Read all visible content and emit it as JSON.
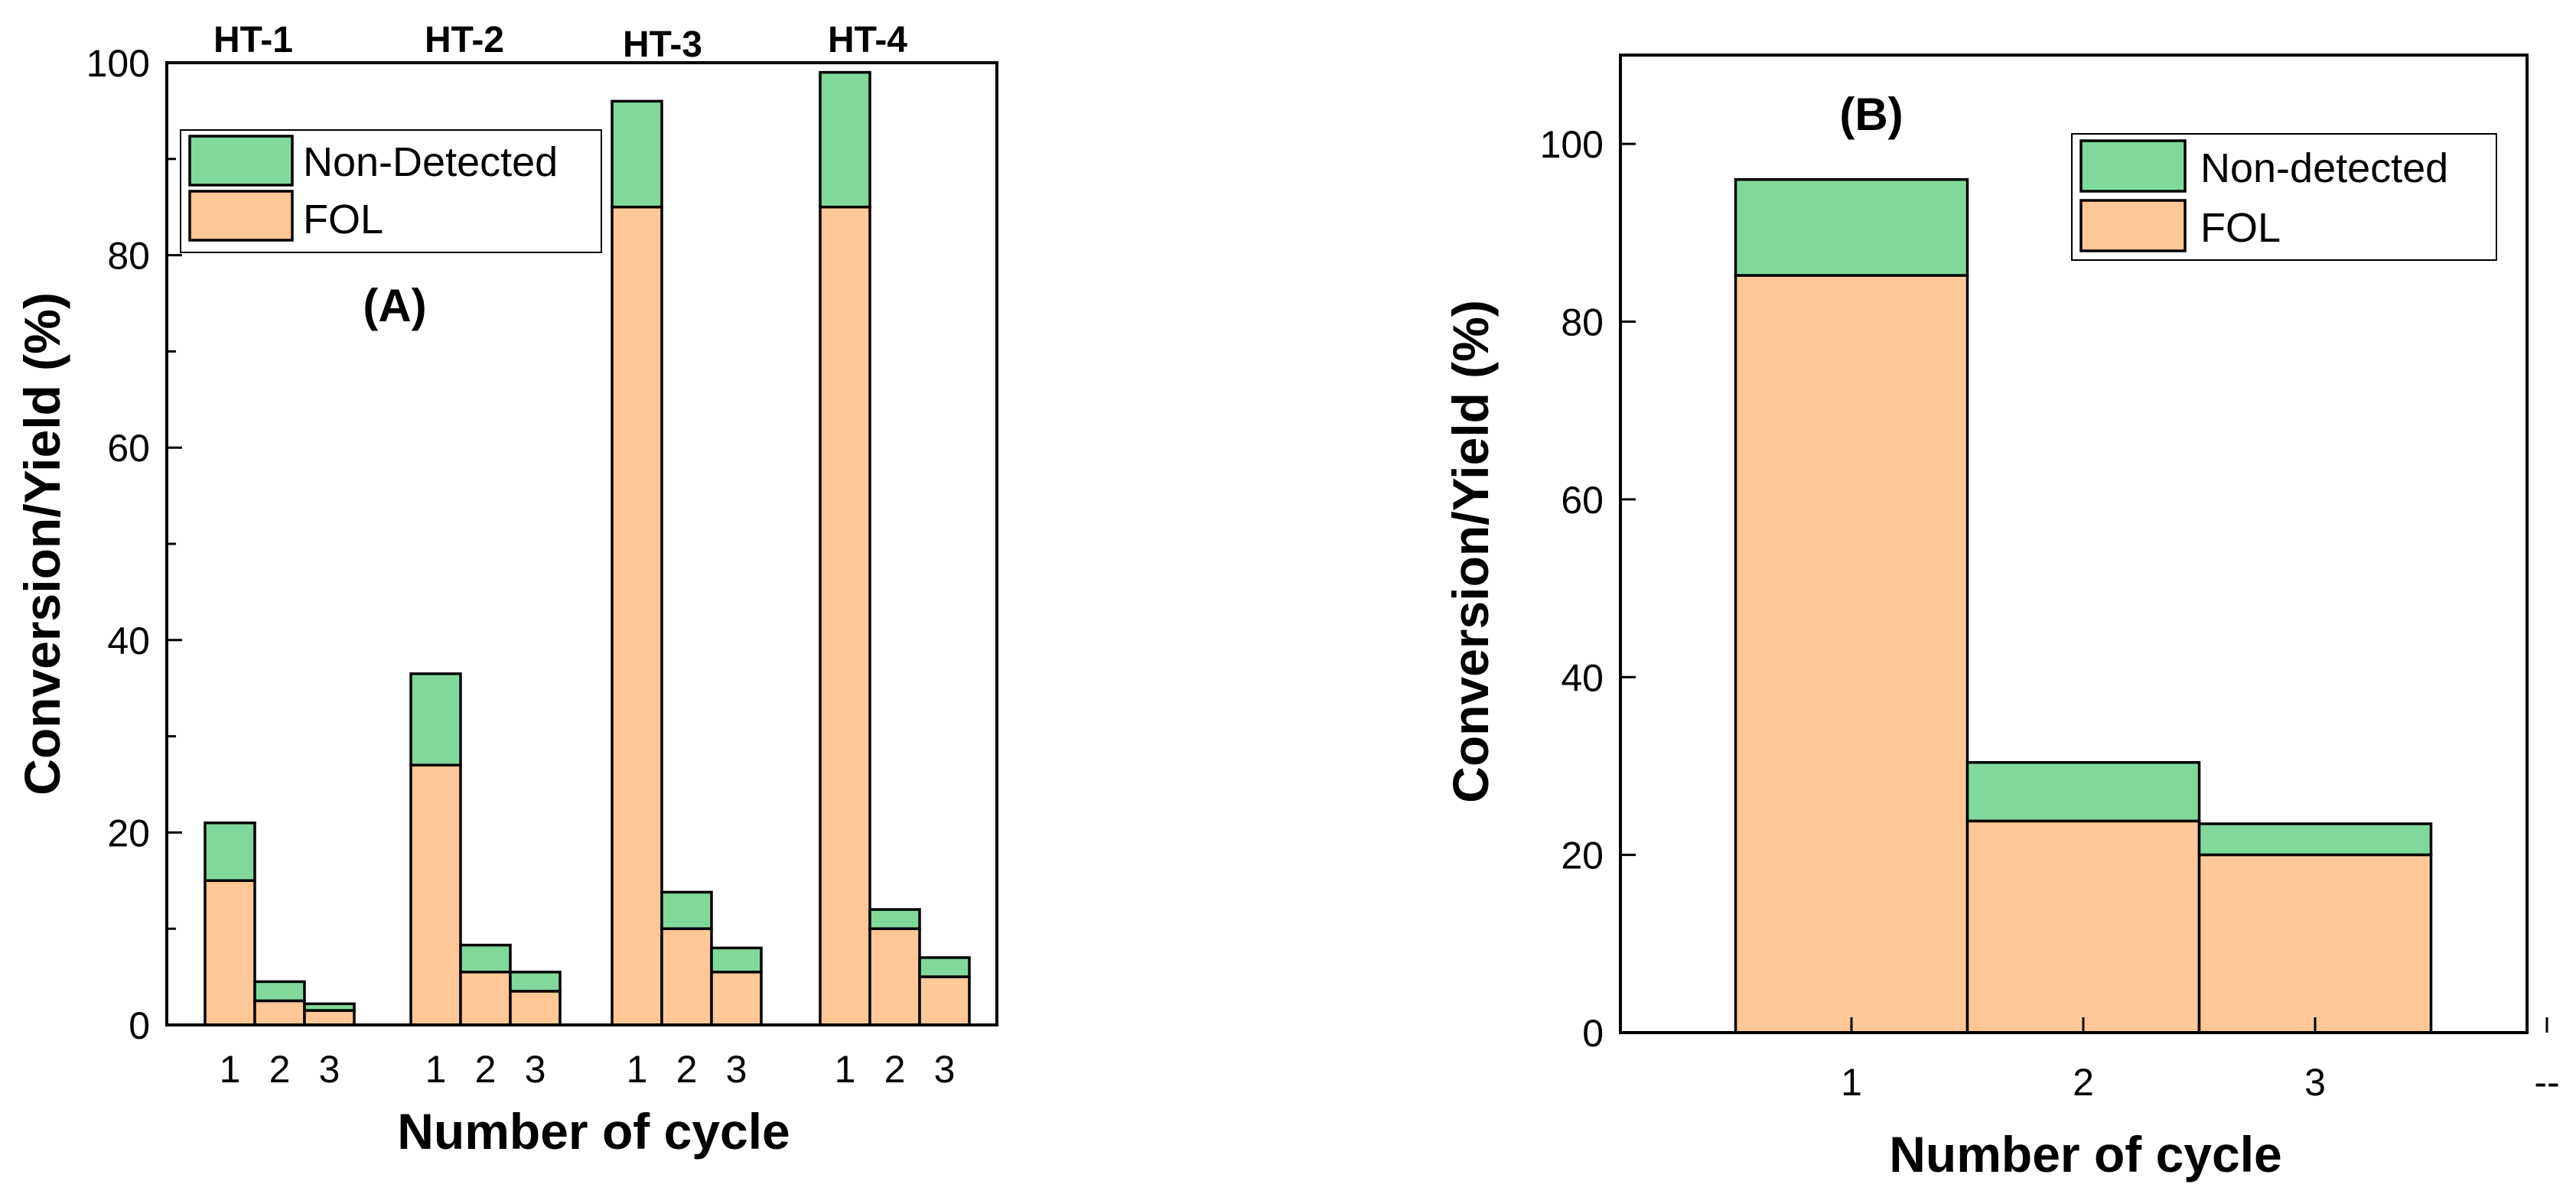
{
  "colors": {
    "fol": "#ffc896",
    "non_detected": "#80d99b",
    "axis": "#000000"
  },
  "chart_data": [
    {
      "panel": "A",
      "type": "bar",
      "stacked": true,
      "tag": "(A)",
      "xlabel": "Number of cycle",
      "ylabel": "Conversion/Yield (%)",
      "ylim": [
        0,
        100
      ],
      "yticks": [
        0,
        20,
        40,
        60,
        80,
        100
      ],
      "legend": {
        "position": "top-left",
        "entries": [
          "Non-Detected",
          "FOL"
        ]
      },
      "groups": [
        {
          "name": "HT-1",
          "cycles": [
            "1",
            "2",
            "3"
          ],
          "fol": [
            15,
            2.5,
            1.5
          ],
          "total": [
            21,
            4.5,
            2.2
          ]
        },
        {
          "name": "HT-2",
          "cycles": [
            "1",
            "2",
            "3"
          ],
          "fol": [
            27,
            5.5,
            3.5
          ],
          "total": [
            36.5,
            8.3,
            5.5
          ]
        },
        {
          "name": "HT-3",
          "cycles": [
            "1",
            "2",
            "3"
          ],
          "fol": [
            85,
            10,
            5.5
          ],
          "total": [
            96,
            13.8,
            8
          ]
        },
        {
          "name": "HT-4",
          "cycles": [
            "1",
            "2",
            "3"
          ],
          "fol": [
            85,
            10,
            5
          ],
          "total": [
            99,
            12,
            7
          ]
        }
      ]
    },
    {
      "panel": "B",
      "type": "bar",
      "stacked": true,
      "tag": "(B)",
      "xlabel": "Number of cycle",
      "ylabel": "Conversion/Yield (%)",
      "ylim": [
        0,
        110
      ],
      "yticks": [
        0,
        20,
        40,
        60,
        80,
        100
      ],
      "xticks": [
        "1",
        "2",
        "3",
        "--"
      ],
      "legend": {
        "position": "top-right",
        "entries": [
          "Non-detected",
          "FOL"
        ]
      },
      "categories": [
        "1",
        "2",
        "3"
      ],
      "series": [
        {
          "name": "FOL",
          "values": [
            85.2,
            23.8,
            20
          ]
        },
        {
          "name": "Non-detected",
          "values": [
            10.8,
            6.6,
            3.5
          ]
        }
      ],
      "totals": [
        96,
        30.4,
        23.5
      ]
    }
  ]
}
